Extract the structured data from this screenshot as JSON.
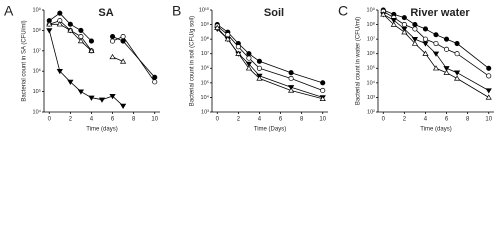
{
  "chart_data": [
    {
      "type": "line",
      "panel_label": "A",
      "title": "SA",
      "x_label": "Time (days)",
      "y_label": "Bacterial count in SA (CFU/ml)",
      "log_scale": true,
      "xlim": [
        -0.5,
        10.5
      ],
      "xticks": [
        0,
        2,
        4,
        6,
        8,
        10
      ],
      "ylim": [
        10000,
        1000000000
      ],
      "yticks": [
        {
          "value": 10000,
          "label": "10⁴"
        },
        {
          "value": 100000,
          "label": "10⁵"
        },
        {
          "value": 1000000,
          "label": "10⁶"
        },
        {
          "value": 10000000,
          "label": "10⁷"
        },
        {
          "value": 100000000,
          "label": "10⁸"
        },
        {
          "value": 1000000000,
          "label": "10⁹"
        }
      ],
      "x": [
        0,
        1,
        2,
        3,
        4,
        5,
        6,
        7,
        10
      ],
      "series": [
        {
          "marker": "circle-filled",
          "color": "#000000",
          "values": [
            300000000,
            700000000,
            200000000,
            100000000,
            30000000,
            null,
            50000000,
            30000000,
            500000
          ]
        },
        {
          "marker": "circle-open",
          "color": "#000000",
          "values": [
            200000000,
            300000000,
            100000000,
            50000000,
            10000000,
            null,
            30000000,
            50000000,
            300000
          ]
        },
        {
          "marker": "triangle-open",
          "color": "#000000",
          "values": [
            200000000,
            200000000,
            100000000,
            30000000,
            10000000,
            null,
            5000000,
            3000000,
            null
          ]
        },
        {
          "marker": "triangle-filled",
          "color": "#000000",
          "values": [
            100000000,
            1000000,
            300000,
            100000,
            50000,
            40000,
            60000,
            20000,
            null
          ]
        }
      ]
    },
    {
      "type": "line",
      "panel_label": "B",
      "title": "Soil",
      "x_label": "Time (Days)",
      "y_label": "Bacterial count in soil (CFU/g soil)",
      "log_scale": true,
      "xlim": [
        -0.5,
        10.5
      ],
      "xticks": [
        0,
        2,
        4,
        6,
        8,
        10
      ],
      "ylim": [
        1000,
        10000000000
      ],
      "yticks": [
        {
          "value": 1000,
          "label": "10³"
        },
        {
          "value": 10000,
          "label": "10⁴"
        },
        {
          "value": 100000,
          "label": "10⁵"
        },
        {
          "value": 1000000,
          "label": "10⁶"
        },
        {
          "value": 10000000,
          "label": "10⁷"
        },
        {
          "value": 100000000,
          "label": "10⁸"
        },
        {
          "value": 1000000000,
          "label": "10⁹"
        },
        {
          "value": 10000000000,
          "label": "10¹⁰"
        }
      ],
      "x": [
        0,
        1,
        2,
        3,
        4,
        7,
        10
      ],
      "series": [
        {
          "marker": "circle-filled",
          "color": "#000000",
          "values": [
            1000000000,
            300000000,
            50000000,
            10000000,
            3000000,
            500000,
            100000
          ]
        },
        {
          "marker": "circle-open",
          "color": "#000000",
          "values": [
            800000000,
            200000000,
            30000000,
            5000000,
            1000000,
            200000,
            30000
          ]
        },
        {
          "marker": "triangle-filled",
          "color": "#000000",
          "values": [
            500000000,
            100000000,
            10000000,
            2000000,
            300000,
            50000,
            10000
          ]
        },
        {
          "marker": "triangle-open",
          "color": "#000000",
          "values": [
            600000000,
            100000000,
            10000000,
            1000000,
            200000,
            30000,
            8000
          ]
        }
      ]
    },
    {
      "type": "line",
      "panel_label": "C",
      "title": "River water",
      "x_label": "Time (days)",
      "y_label": "Bacterial count in water (CFU/ml)",
      "log_scale": true,
      "xlim": [
        -0.5,
        10.5
      ],
      "xticks": [
        0,
        2,
        4,
        6,
        8,
        10
      ],
      "ylim": [
        100,
        1000000000
      ],
      "yticks": [
        {
          "value": 100,
          "label": "10²"
        },
        {
          "value": 1000,
          "label": "10³"
        },
        {
          "value": 10000,
          "label": "10⁴"
        },
        {
          "value": 100000,
          "label": "10⁵"
        },
        {
          "value": 1000000,
          "label": "10⁶"
        },
        {
          "value": 10000000,
          "label": "10⁷"
        },
        {
          "value": 100000000,
          "label": "10⁸"
        },
        {
          "value": 1000000000,
          "label": "10⁹"
        }
      ],
      "x": [
        0,
        1,
        2,
        3,
        4,
        5,
        6,
        7,
        10
      ],
      "series": [
        {
          "marker": "circle-filled",
          "color": "#000000",
          "values": [
            1000000000,
            500000000,
            300000000,
            100000000,
            50000000,
            20000000,
            10000000,
            5000000,
            100000
          ]
        },
        {
          "marker": "circle-open",
          "color": "#000000",
          "values": [
            800000000,
            300000000,
            100000000,
            50000000,
            10000000,
            5000000,
            2000000,
            1000000,
            30000
          ]
        },
        {
          "marker": "triangle-filled",
          "color": "#000000",
          "values": [
            500000000,
            200000000,
            50000000,
            10000000,
            5000000,
            1000000,
            100000,
            50000,
            3000
          ]
        },
        {
          "marker": "triangle-open",
          "color": "#000000",
          "values": [
            500000000,
            100000000,
            30000000,
            5000000,
            1000000,
            100000,
            50000,
            20000,
            1000
          ]
        }
      ]
    }
  ]
}
